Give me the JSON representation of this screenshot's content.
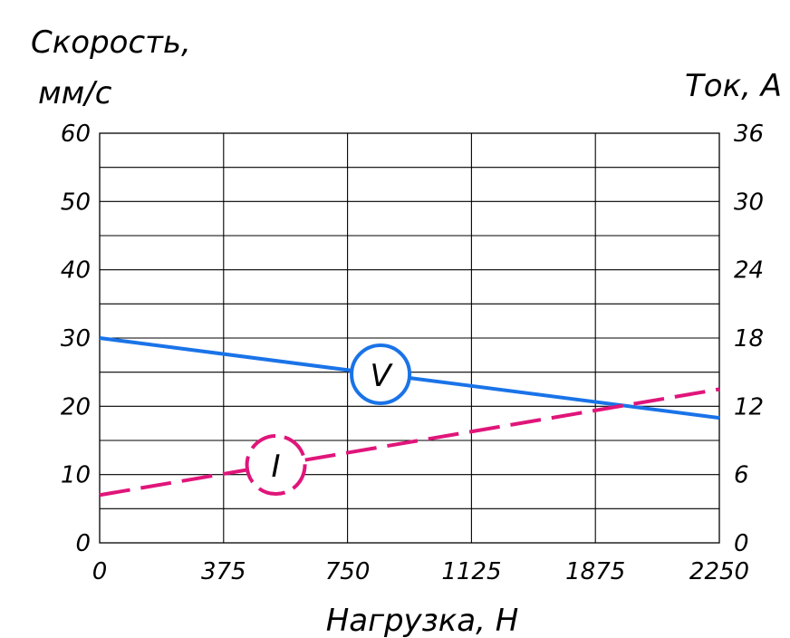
{
  "chart_data": {
    "type": "line",
    "xlabel": "Нагрузка, Н",
    "ylabel_left_line1": "Скорость,",
    "ylabel_left_line2": "мм/с",
    "ylabel_right": "Ток, А",
    "x_ticks": [
      "0",
      "375",
      "750",
      "1125",
      "1875",
      "2250"
    ],
    "y_left_ticks": [
      "0",
      "10",
      "20",
      "30",
      "40",
      "50",
      "60"
    ],
    "y_right_ticks": [
      "0",
      "6",
      "12",
      "18",
      "24",
      "30",
      "36"
    ],
    "xlim": [
      0,
      2250
    ],
    "ylim_left": [
      0,
      60
    ],
    "ylim_right": [
      0,
      36
    ],
    "grid": true,
    "series": [
      {
        "name": "V",
        "axis": "left",
        "color": "#1a73e8",
        "style": "solid",
        "x": [
          0,
          2250
        ],
        "y": [
          30,
          18.3
        ]
      },
      {
        "name": "I",
        "axis": "right",
        "color": "#e0157a",
        "style": "dashed",
        "x": [
          0,
          2250
        ],
        "y": [
          4.2,
          13.5
        ]
      }
    ],
    "annotations": [
      {
        "text": "V",
        "series": "V",
        "x": 1020
      },
      {
        "text": "I",
        "series": "I",
        "x": 640
      }
    ]
  }
}
